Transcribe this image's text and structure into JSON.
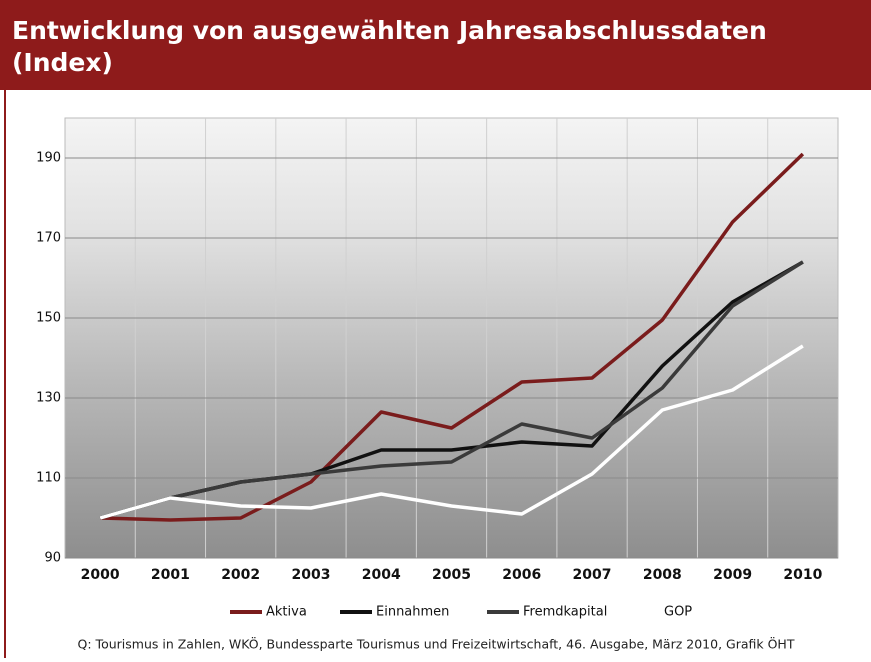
{
  "chart_data": {
    "type": "line",
    "title": "Entwicklung von ausgewählten Jahresabschlussdaten (Index)",
    "categories": [
      "2000",
      "2001",
      "2002",
      "2003",
      "2004",
      "2005",
      "2006",
      "2007",
      "2008",
      "2009",
      "2010"
    ],
    "series": [
      {
        "name": "Aktiva",
        "color": "#7a1c1c",
        "values": [
          100,
          99.5,
          100,
          109,
          126.5,
          122.5,
          134,
          135,
          149.5,
          174,
          191
        ]
      },
      {
        "name": "Einnahmen",
        "color": "#111111",
        "values": [
          100,
          105,
          109,
          111,
          117,
          117,
          119,
          118,
          138,
          154,
          164
        ]
      },
      {
        "name": "Fremdkapital",
        "color": "#3a3a3a",
        "values": [
          100,
          105,
          109,
          111,
          113,
          114,
          123.5,
          120,
          132.5,
          153,
          164
        ]
      },
      {
        "name": "GOP",
        "color": "#ffffff",
        "values": [
          100,
          105,
          103,
          102.5,
          106,
          103,
          101,
          111,
          127,
          132,
          143
        ]
      }
    ],
    "ylim": [
      90,
      200
    ],
    "yticks": [
      90,
      110,
      130,
      150,
      170,
      190
    ],
    "grid": true,
    "source": "Q: Tourismus in Zahlen, WKÖ, Bundessparte Tourismus und Freizeitwirtschaft, 46. Ausgabe, März 2010, Grafik ÖHT"
  }
}
